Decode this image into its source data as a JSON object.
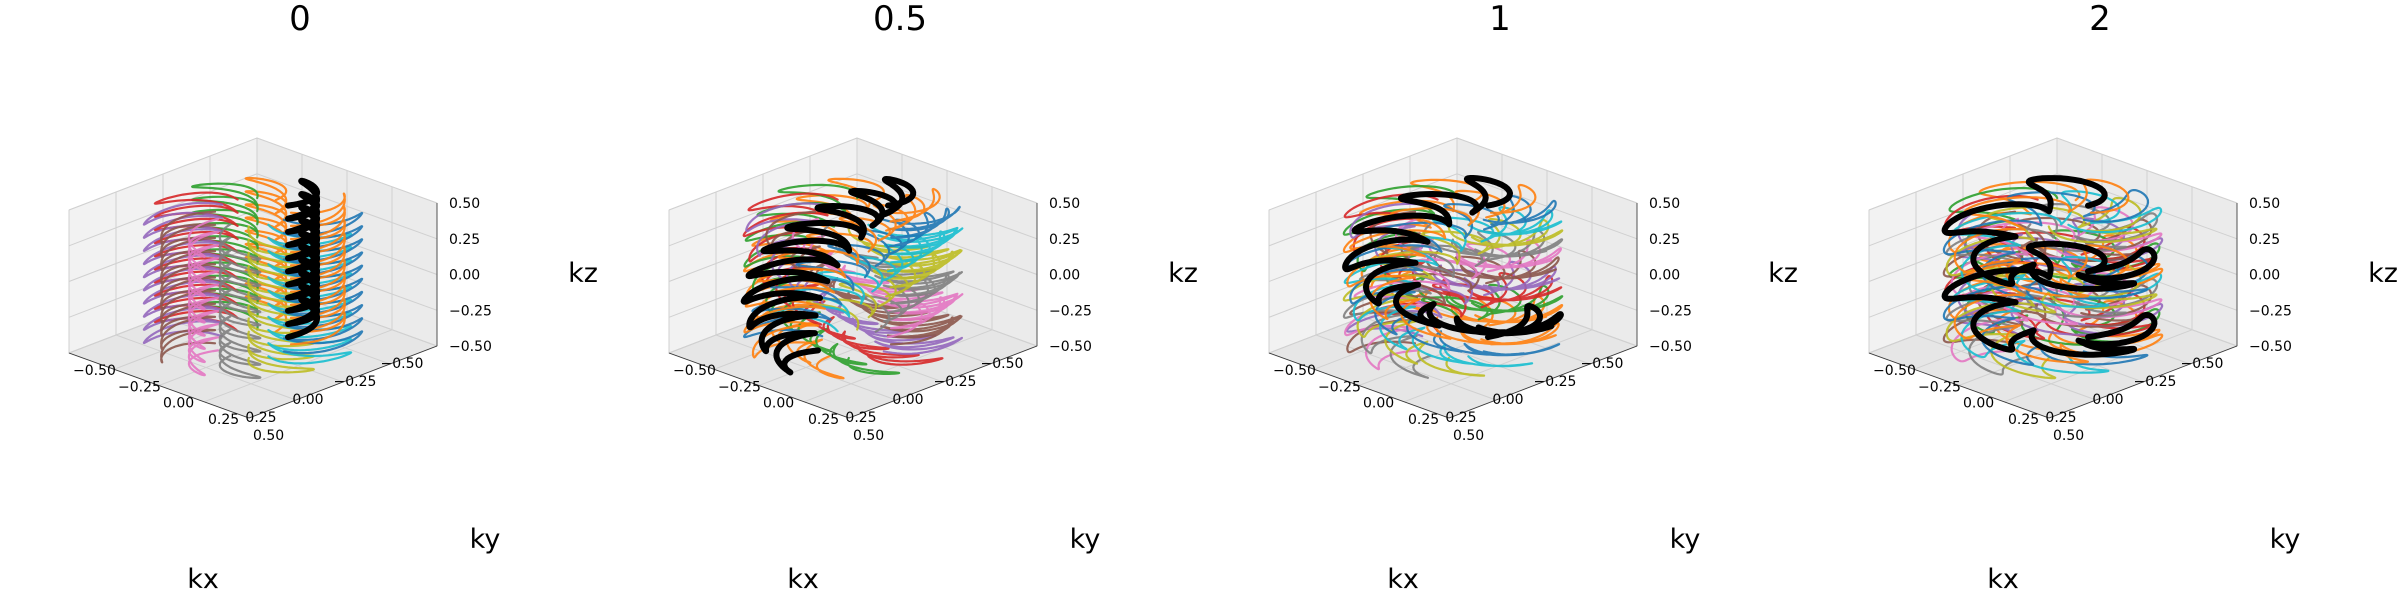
{
  "colors": [
    "#1f77b4",
    "#ff7f0e",
    "#2ca02c",
    "#d62728",
    "#9467bd",
    "#8c564b",
    "#e377c2",
    "#7f7f7f",
    "#bcbd22",
    "#17becf"
  ],
  "highlight_color": "#000000",
  "chart_data": [
    {
      "type": "line3d",
      "title": "0",
      "xlabel": "kx",
      "ylabel": "ky",
      "zlabel": "kz",
      "xlim": [
        -0.5,
        0.5
      ],
      "ylim": [
        -0.5,
        0.5
      ],
      "zlim": [
        -0.5,
        0.5
      ],
      "xticks": [
        "-0.50",
        "-0.25",
        "0.00",
        "0.25"
      ],
      "yticks": [
        "-0.50",
        "-0.25",
        "0.00",
        "0.25",
        "0.50"
      ],
      "zticks": [
        "-0.50",
        "-0.25",
        "0.00",
        "0.25",
        "0.50"
      ],
      "twist": 0,
      "loops": 10,
      "n_shots": 12,
      "grid": true
    },
    {
      "type": "line3d",
      "title": "0.5",
      "xlabel": "kx",
      "ylabel": "ky",
      "zlabel": "kz",
      "xlim": [
        -0.5,
        0.5
      ],
      "ylim": [
        -0.5,
        0.5
      ],
      "zlim": [
        -0.5,
        0.5
      ],
      "xticks": [
        "-0.50",
        "-0.25",
        "0.00",
        "0.25"
      ],
      "yticks": [
        "-0.50",
        "-0.25",
        "0.00",
        "0.25",
        "0.50"
      ],
      "zticks": [
        "-0.50",
        "-0.25",
        "0.00",
        "0.25",
        "0.50"
      ],
      "twist": 0.5,
      "loops": 10,
      "n_shots": 12,
      "grid": true
    },
    {
      "type": "line3d",
      "title": "1",
      "xlabel": "kx",
      "ylabel": "ky",
      "zlabel": "kz",
      "xlim": [
        -0.5,
        0.5
      ],
      "ylim": [
        -0.5,
        0.5
      ],
      "zlim": [
        -0.5,
        0.5
      ],
      "xticks": [
        "-0.50",
        "-0.25",
        "0.00",
        "0.25"
      ],
      "yticks": [
        "-0.50",
        "-0.25",
        "0.00",
        "0.25",
        "0.50"
      ],
      "zticks": [
        "-0.50",
        "-0.25",
        "0.00",
        "0.25",
        "0.50"
      ],
      "twist": 1,
      "loops": 10,
      "n_shots": 12,
      "grid": true
    },
    {
      "type": "line3d",
      "title": "2",
      "xlabel": "kx",
      "ylabel": "ky",
      "zlabel": "kz",
      "xlim": [
        -0.5,
        0.5
      ],
      "ylim": [
        -0.5,
        0.5
      ],
      "zlim": [
        -0.5,
        0.5
      ],
      "xticks": [
        "-0.50",
        "-0.25",
        "0.00",
        "0.25"
      ],
      "yticks": [
        "-0.50",
        "-0.25",
        "0.00",
        "0.25",
        "0.50"
      ],
      "zticks": [
        "-0.50",
        "-0.25",
        "0.00",
        "0.25",
        "0.50"
      ],
      "twist": 2,
      "loops": 10,
      "n_shots": 12,
      "grid": true
    }
  ]
}
